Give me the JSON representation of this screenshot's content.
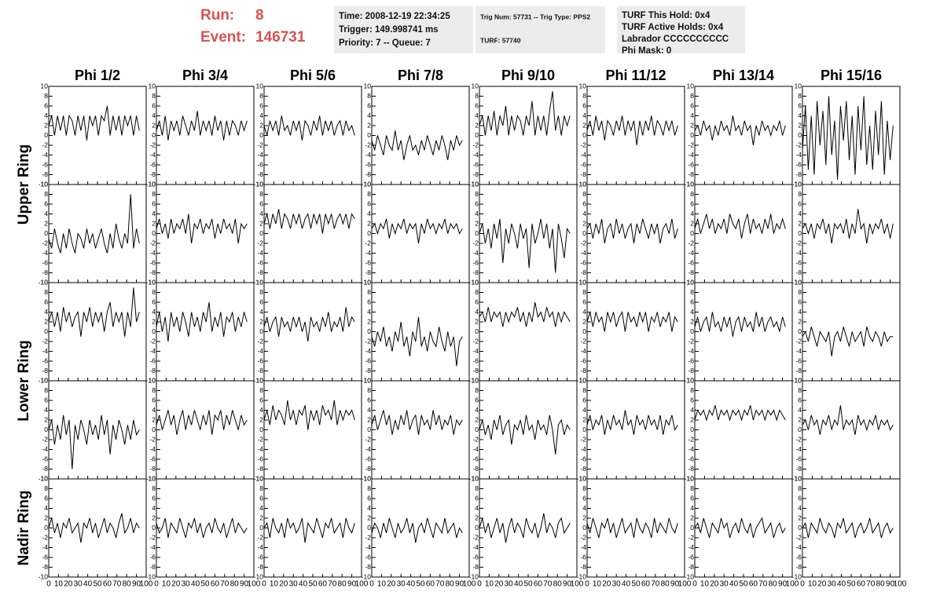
{
  "header": {
    "run_label": "Run:",
    "run": "8",
    "event_label": "Event:",
    "event": "146731"
  },
  "info_boxes": [
    [
      "Time: 2008-12-19 22:34:25",
      "Trigger: 149.998741 ms",
      "Priority: 7 -- Queue: 7"
    ],
    [
      "Trig Num: 57731 -- Trig Type: PPS2",
      "TURF: 57740"
    ],
    [
      "TURF This Hold: 0x4",
      "TURF Active Holds: 0x4",
      "Labrador CCCCCCCCCC",
      "Phi Mask: 0"
    ]
  ],
  "chart_data": {
    "type": "line",
    "columns": [
      "Phi 1/2",
      "Phi 3/4",
      "Phi 5/6",
      "Phi 7/8",
      "Phi 9/10",
      "Phi 11/12",
      "Phi 13/14",
      "Phi 15/16"
    ],
    "row_labels": [
      "Upper Ring",
      "Lower Ring",
      "Nadir Ring"
    ],
    "xlim": [
      0,
      100
    ],
    "xticks": [
      0,
      10,
      20,
      30,
      40,
      50,
      60,
      70,
      80,
      90,
      100
    ],
    "ylim": [
      -10,
      10
    ],
    "yticks": [
      -10,
      -8,
      -6,
      -4,
      -2,
      0,
      2,
      4,
      6,
      8,
      10
    ],
    "color": "#000000",
    "x": [
      0,
      3,
      6,
      9,
      12,
      15,
      18,
      21,
      24,
      27,
      30,
      33,
      36,
      39,
      42,
      45,
      48,
      51,
      54,
      57,
      60,
      63,
      66,
      69,
      72,
      75,
      78,
      81,
      84,
      87,
      90,
      93
    ],
    "panels": [
      [
        2,
        4,
        0,
        4,
        1,
        4,
        0,
        4,
        3,
        0,
        4,
        1,
        4,
        -1,
        4,
        2,
        4,
        0,
        4,
        3,
        6,
        0,
        4,
        1,
        4,
        0,
        4,
        2,
        4,
        0,
        4,
        1
      ],
      [
        1,
        3,
        0,
        4,
        -1,
        3,
        1,
        3,
        0,
        4,
        2,
        0,
        3,
        1,
        5,
        0,
        3,
        1,
        3,
        0,
        4,
        1,
        3,
        -1,
        3,
        0,
        3,
        2,
        0,
        3,
        1,
        3
      ],
      [
        2,
        0,
        3,
        1,
        3,
        0,
        4,
        1,
        2,
        0,
        3,
        1,
        3,
        -1,
        3,
        2,
        0,
        3,
        1,
        4,
        0,
        3,
        1,
        3,
        0,
        2,
        3,
        0,
        3,
        1,
        2,
        0
      ],
      [
        -1,
        -3,
        0,
        -2,
        -4,
        0,
        -2,
        -3,
        1,
        -3,
        -1,
        -5,
        -2,
        0,
        -3,
        -2,
        -4,
        -1,
        -3,
        0,
        -2,
        -4,
        -1,
        -3,
        0,
        -2,
        -5,
        -1,
        -3,
        0,
        -2,
        -1
      ],
      [
        2,
        4,
        0,
        4,
        1,
        5,
        0,
        4,
        2,
        6,
        0,
        4,
        1,
        4,
        3,
        0,
        4,
        2,
        7,
        0,
        4,
        1,
        4,
        0,
        5,
        9,
        1,
        4,
        0,
        4,
        2,
        4
      ],
      [
        1,
        3,
        0,
        4,
        1,
        3,
        -1,
        3,
        2,
        0,
        3,
        1,
        4,
        0,
        3,
        1,
        3,
        -2,
        3,
        0,
        3,
        1,
        4,
        0,
        3,
        2,
        0,
        3,
        1,
        3,
        0,
        2
      ],
      [
        1,
        2,
        0,
        3,
        1,
        2,
        -1,
        2,
        0,
        3,
        1,
        2,
        0,
        4,
        1,
        2,
        0,
        3,
        1,
        2,
        -2,
        2,
        0,
        3,
        1,
        2,
        0,
        2,
        1,
        3,
        0,
        2
      ],
      [
        -3,
        6,
        -7,
        4,
        -8,
        7,
        -2,
        5,
        -6,
        8,
        -4,
        3,
        -9,
        6,
        -1,
        7,
        -5,
        4,
        -8,
        6,
        -3,
        8,
        -6,
        2,
        -7,
        5,
        -4,
        7,
        -8,
        3,
        -5,
        2
      ],
      [
        -1,
        -3,
        1,
        -2,
        -4,
        0,
        -3,
        1,
        -2,
        -4,
        0,
        -1,
        -3,
        1,
        -2,
        0,
        -3,
        -1,
        1,
        -2,
        -4,
        0,
        -3,
        2,
        -1,
        -3,
        0,
        -2,
        8,
        -3,
        1,
        -2
      ],
      [
        1,
        3,
        0,
        2,
        -1,
        3,
        0,
        2,
        1,
        3,
        0,
        4,
        -2,
        2,
        1,
        3,
        0,
        2,
        1,
        3,
        -1,
        2,
        0,
        3,
        1,
        2,
        0,
        3,
        -2,
        2,
        1,
        2
      ],
      [
        2,
        4,
        1,
        4,
        2,
        5,
        1,
        4,
        3,
        1,
        4,
        2,
        4,
        1,
        3,
        4,
        1,
        4,
        2,
        4,
        0,
        4,
        2,
        4,
        1,
        3,
        4,
        2,
        4,
        1,
        4,
        3
      ],
      [
        1,
        2,
        0,
        2,
        1,
        3,
        -1,
        2,
        0,
        2,
        1,
        3,
        0,
        2,
        1,
        2,
        -2,
        2,
        0,
        3,
        1,
        2,
        0,
        2,
        1,
        3,
        0,
        2,
        1,
        2,
        0,
        1
      ],
      [
        0,
        2,
        -2,
        1,
        -3,
        2,
        -1,
        3,
        -6,
        1,
        -2,
        2,
        0,
        -3,
        2,
        -1,
        1,
        -7,
        2,
        -2,
        0,
        3,
        -1,
        2,
        -3,
        1,
        -8,
        2,
        -1,
        -5,
        1,
        0
      ],
      [
        1,
        2,
        -1,
        2,
        0,
        3,
        -2,
        1,
        2,
        -1,
        3,
        0,
        2,
        -1,
        1,
        2,
        -2,
        2,
        0,
        3,
        1,
        -1,
        2,
        0,
        2,
        -2,
        1,
        2,
        0,
        3,
        -1,
        1
      ],
      [
        1,
        3,
        0,
        2,
        4,
        1,
        3,
        0,
        2,
        1,
        3,
        0,
        4,
        2,
        1,
        3,
        -1,
        2,
        4,
        0,
        3,
        1,
        2,
        0,
        3,
        1,
        4,
        0,
        2,
        1,
        3,
        1
      ],
      [
        1,
        2,
        0,
        2,
        -1,
        2,
        1,
        3,
        0,
        2,
        -2,
        2,
        1,
        2,
        0,
        3,
        -1,
        2,
        0,
        5,
        1,
        2,
        -2,
        2,
        0,
        2,
        1,
        3,
        0,
        2,
        -1,
        2
      ],
      [
        2,
        4,
        1,
        4,
        0,
        5,
        2,
        4,
        1,
        3,
        4,
        -1,
        4,
        2,
        5,
        1,
        4,
        2,
        4,
        0,
        4,
        6,
        1,
        4,
        2,
        4,
        -1,
        4,
        1,
        9,
        2,
        4
      ],
      [
        1,
        4,
        0,
        3,
        -2,
        4,
        1,
        3,
        0,
        4,
        2,
        -1,
        4,
        1,
        3,
        0,
        4,
        2,
        6,
        0,
        3,
        1,
        4,
        -1,
        3,
        2,
        4,
        0,
        3,
        1,
        4,
        2
      ],
      [
        1,
        3,
        0,
        2,
        3,
        -1,
        3,
        1,
        2,
        0,
        3,
        1,
        3,
        0,
        2,
        -2,
        3,
        1,
        2,
        0,
        3,
        1,
        4,
        0,
        2,
        1,
        3,
        0,
        5,
        1,
        3,
        2
      ],
      [
        -1,
        -3,
        0,
        -2,
        1,
        -3,
        -1,
        -4,
        0,
        -2,
        2,
        -3,
        -1,
        -5,
        0,
        -2,
        3,
        -3,
        -1,
        -4,
        0,
        -2,
        -3,
        1,
        -2,
        -4,
        0,
        -3,
        -1,
        -7,
        -2,
        -1
      ],
      [
        3,
        4,
        2,
        5,
        2,
        4,
        3,
        4,
        1,
        4,
        2,
        4,
        3,
        5,
        2,
        4,
        1,
        4,
        2,
        6,
        3,
        4,
        2,
        5,
        3,
        4,
        1,
        4,
        2,
        4,
        3,
        2
      ],
      [
        2,
        4,
        1,
        4,
        2,
        3,
        0,
        4,
        2,
        4,
        1,
        3,
        4,
        0,
        4,
        2,
        3,
        1,
        4,
        2,
        4,
        0,
        3,
        2,
        4,
        1,
        3,
        2,
        4,
        0,
        3,
        2
      ],
      [
        1,
        3,
        0,
        2,
        3,
        0,
        4,
        1,
        2,
        0,
        3,
        1,
        3,
        -1,
        2,
        3,
        0,
        3,
        1,
        2,
        0,
        4,
        1,
        3,
        0,
        2,
        3,
        1,
        2,
        0,
        3,
        1
      ],
      [
        -1,
        0,
        -2,
        1,
        -1,
        -3,
        0,
        -1,
        -2,
        0,
        -5,
        -1,
        0,
        -2,
        1,
        -1,
        -3,
        0,
        -2,
        -1,
        0,
        -3,
        1,
        -1,
        -2,
        0,
        -1,
        -3,
        0,
        -2,
        -1,
        -1
      ],
      [
        0,
        2,
        -3,
        1,
        -2,
        3,
        -1,
        2,
        -8,
        1,
        -2,
        2,
        0,
        -3,
        2,
        -1,
        1,
        -2,
        3,
        -1,
        2,
        -5,
        1,
        -2,
        2,
        0,
        -3,
        1,
        -2,
        2,
        -1,
        0
      ],
      [
        1,
        3,
        0,
        2,
        4,
        1,
        3,
        -1,
        2,
        4,
        0,
        3,
        1,
        4,
        2,
        0,
        3,
        1,
        4,
        -1,
        3,
        2,
        4,
        0,
        3,
        1,
        4,
        2,
        0,
        3,
        1,
        2
      ],
      [
        2,
        4,
        1,
        5,
        2,
        4,
        3,
        1,
        6,
        2,
        4,
        1,
        4,
        3,
        5,
        0,
        4,
        2,
        4,
        1,
        5,
        3,
        4,
        2,
        6,
        1,
        4,
        2,
        4,
        3,
        4,
        2
      ],
      [
        1,
        3,
        0,
        2,
        4,
        1,
        3,
        -1,
        2,
        0,
        3,
        1,
        4,
        0,
        2,
        3,
        -1,
        3,
        1,
        2,
        0,
        4,
        1,
        3,
        0,
        2,
        1,
        3,
        -1,
        2,
        1,
        2
      ],
      [
        0,
        2,
        -1,
        1,
        -2,
        2,
        0,
        3,
        -1,
        1,
        2,
        -3,
        1,
        0,
        2,
        -1,
        3,
        0,
        1,
        -2,
        2,
        0,
        1,
        -1,
        3,
        0,
        -5,
        1,
        2,
        -1,
        1,
        0
      ],
      [
        1,
        3,
        0,
        2,
        1,
        3,
        -1,
        2,
        0,
        3,
        1,
        2,
        0,
        4,
        1,
        2,
        -1,
        3,
        1,
        2,
        0,
        3,
        1,
        2,
        0,
        3,
        -1,
        2,
        1,
        3,
        0,
        1
      ],
      [
        2,
        4,
        3,
        4,
        2,
        4,
        3,
        5,
        2,
        4,
        3,
        4,
        2,
        4,
        3,
        4,
        2,
        4,
        3,
        5,
        2,
        4,
        3,
        4,
        2,
        4,
        3,
        4,
        2,
        4,
        3,
        2
      ],
      [
        1,
        2,
        0,
        3,
        1,
        2,
        -1,
        2,
        1,
        3,
        0,
        2,
        1,
        5,
        0,
        2,
        1,
        2,
        -1,
        3,
        1,
        2,
        0,
        2,
        1,
        3,
        0,
        2,
        1,
        2,
        0,
        1
      ],
      [
        0,
        2,
        -1,
        1,
        -2,
        1,
        0,
        2,
        -1,
        0,
        1,
        -3,
        1,
        0,
        2,
        -1,
        1,
        -2,
        0,
        2,
        -1,
        1,
        0,
        -2,
        1,
        3,
        -1,
        0,
        2,
        -1,
        1,
        0
      ],
      [
        1,
        -1,
        0,
        2,
        -2,
        1,
        0,
        -1,
        2,
        0,
        -2,
        1,
        0,
        2,
        -1,
        1,
        -2,
        0,
        1,
        -1,
        2,
        0,
        -1,
        1,
        -2,
        0,
        2,
        -1,
        1,
        0,
        -1,
        0
      ],
      [
        0,
        1,
        -2,
        2,
        0,
        -1,
        1,
        -2,
        2,
        0,
        1,
        -1,
        0,
        2,
        -3,
        1,
        0,
        -1,
        2,
        0,
        -2,
        1,
        0,
        2,
        -1,
        0,
        1,
        -2,
        2,
        0,
        -1,
        1
      ],
      [
        -1,
        1,
        0,
        -2,
        1,
        -1,
        2,
        0,
        -2,
        1,
        -1,
        0,
        2,
        -1,
        1,
        -3,
        0,
        1,
        -1,
        2,
        0,
        -2,
        1,
        0,
        -1,
        2,
        -1,
        0,
        1,
        -2,
        0,
        -1
      ],
      [
        0,
        2,
        -1,
        1,
        -2,
        0,
        2,
        -1,
        1,
        -3,
        0,
        2,
        -1,
        1,
        0,
        -2,
        2,
        0,
        -1,
        1,
        -2,
        0,
        3,
        -1,
        1,
        0,
        -2,
        1,
        2,
        -1,
        0,
        1
      ],
      [
        1,
        -1,
        2,
        0,
        -2,
        1,
        0,
        2,
        -1,
        1,
        -2,
        0,
        2,
        -1,
        0,
        1,
        -2,
        2,
        0,
        -1,
        1,
        0,
        -2,
        2,
        -1,
        1,
        0,
        -1,
        2,
        0,
        -1,
        1
      ],
      [
        0,
        1,
        -1,
        2,
        0,
        -2,
        1,
        0,
        -1,
        2,
        0,
        1,
        -2,
        0,
        1,
        -1,
        2,
        0,
        -1,
        1,
        -2,
        0,
        1,
        2,
        -1,
        0,
        1,
        -2,
        0,
        1,
        -1,
        0
      ],
      [
        0,
        1,
        -2,
        1,
        0,
        -1,
        2,
        0,
        -1,
        1,
        0,
        -2,
        1,
        0,
        2,
        -1,
        0,
        1,
        -2,
        0,
        1,
        -1,
        0,
        2,
        -1,
        0,
        1,
        -2,
        0,
        1,
        -1,
        0
      ]
    ]
  }
}
